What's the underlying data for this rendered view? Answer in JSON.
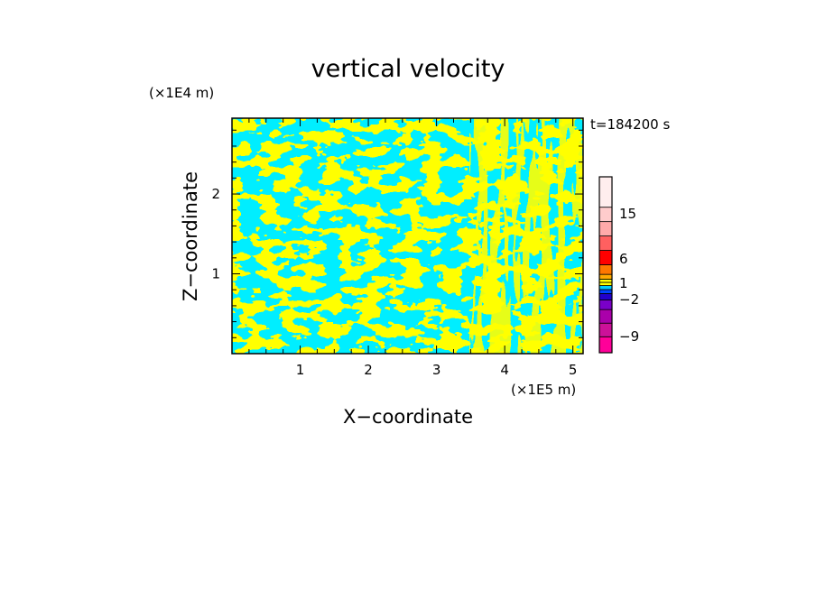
{
  "chart_data": {
    "type": "heatmap",
    "title": "vertical velocity",
    "xlabel": "X−coordinate",
    "ylabel": "Z−coordinate",
    "x_unit": "(×1E5 m)",
    "y_unit": "(×1E4 m)",
    "time_label": "t=184200 s",
    "xlim": [
      0,
      5.15
    ],
    "ylim": [
      0,
      2.95
    ],
    "x_ticks": [
      1,
      2,
      3,
      4,
      5
    ],
    "y_ticks": [
      1,
      2
    ],
    "x_tick_labels": [
      "1",
      "2",
      "3",
      "4",
      "5"
    ],
    "y_tick_labels": [
      "1",
      "2"
    ],
    "field_colors": {
      "positive": "#ffff00",
      "negative": "#00eeff"
    },
    "colorbar": {
      "segments_bottom_to_top": [
        "#ff0099",
        "#cc1199",
        "#aa00aa",
        "#7a00c8",
        "#2200cc",
        "#0044ff",
        "#00ccff",
        "#ffff00",
        "#ffff00",
        "#ffaa00",
        "#ff7700",
        "#ff0000",
        "#ff6060",
        "#ffaaaa",
        "#ffcccc",
        "#ffeeee"
      ],
      "labels": [
        {
          "text": "15",
          "value": 15
        },
        {
          "text": "6",
          "value": 6
        },
        {
          "text": "1",
          "value": 1
        },
        {
          "text": "−2",
          "value": -2
        },
        {
          "text": "−9",
          "value": -9
        }
      ]
    }
  }
}
